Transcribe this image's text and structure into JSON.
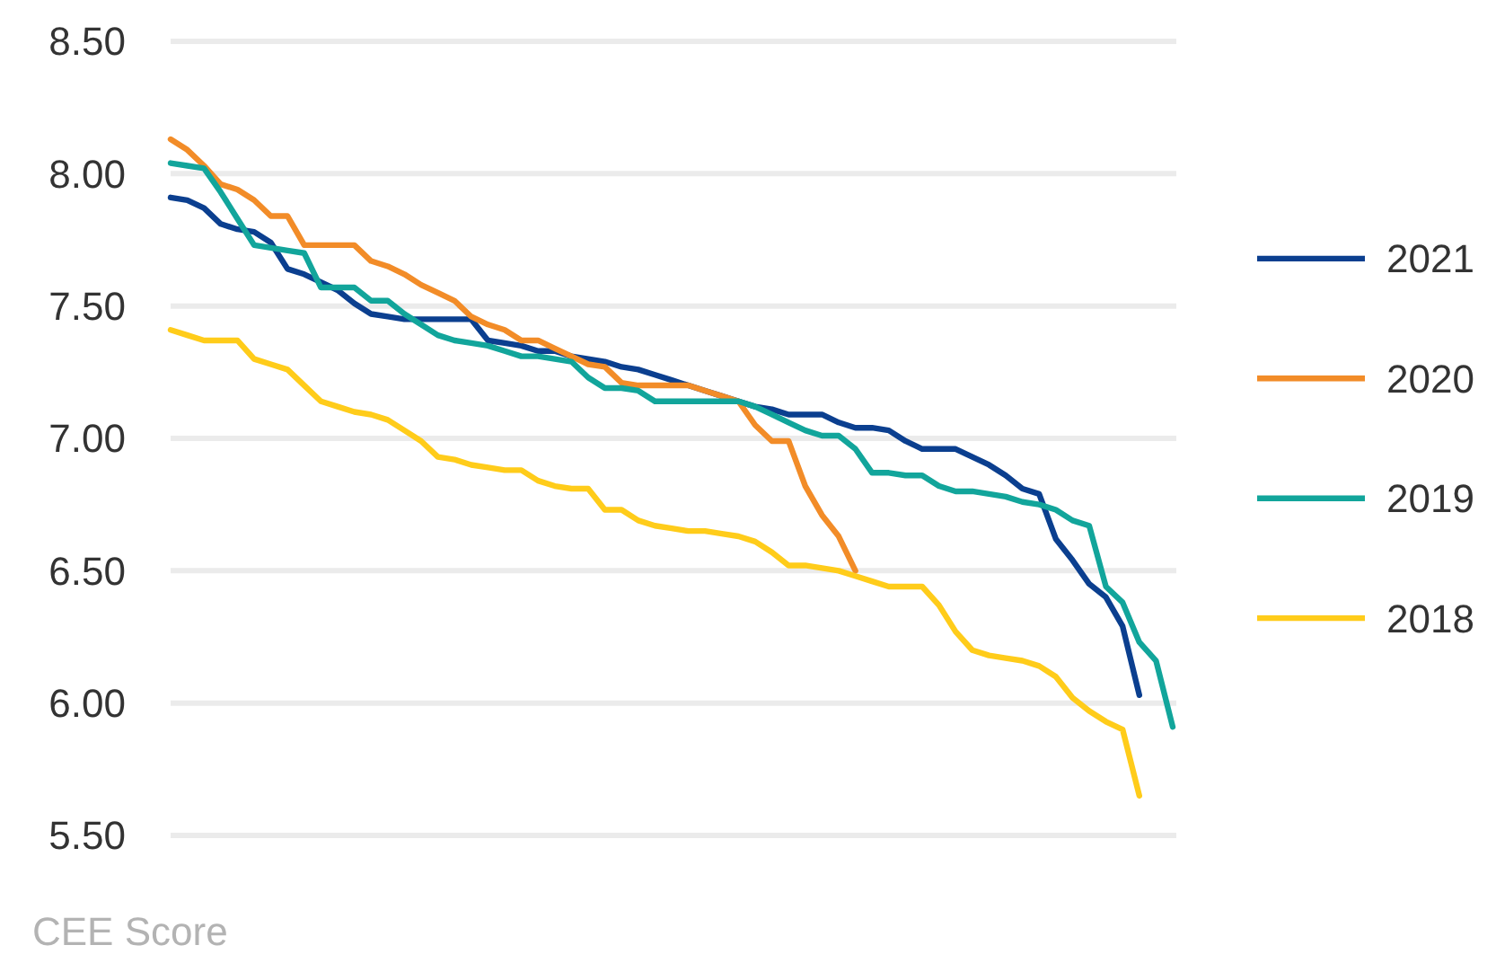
{
  "chart_data": {
    "type": "line",
    "categories": [
      null,
      null,
      null,
      null,
      null,
      null,
      null,
      null,
      null,
      null,
      null,
      null,
      null,
      null,
      null,
      null,
      null,
      null,
      null,
      null,
      null,
      null,
      null,
      null,
      null,
      null,
      null,
      null,
      null,
      null,
      null,
      null,
      null,
      null,
      null,
      null,
      null,
      null,
      null,
      null,
      null,
      null,
      null,
      null,
      null,
      null,
      null,
      null,
      null,
      null,
      null,
      null,
      null,
      null,
      null,
      null,
      null,
      null,
      null,
      null,
      null
    ],
    "series": [
      {
        "name": "2021",
        "color": "#0b3f8f",
        "values": [
          7.91,
          7.9,
          7.87,
          7.81,
          7.79,
          7.78,
          7.74,
          7.64,
          7.62,
          7.59,
          7.56,
          7.51,
          7.47,
          7.46,
          7.45,
          7.45,
          7.45,
          7.45,
          7.45,
          7.37,
          7.36,
          7.35,
          7.33,
          7.33,
          7.31,
          7.3,
          7.29,
          7.27,
          7.26,
          7.24,
          7.22,
          7.2,
          7.18,
          7.16,
          7.14,
          7.12,
          7.11,
          7.09,
          7.09,
          7.09,
          7.06,
          7.04,
          7.04,
          7.03,
          6.99,
          6.96,
          6.96,
          6.96,
          6.93,
          6.9,
          6.86,
          6.81,
          6.79,
          6.62,
          6.54,
          6.45,
          6.4,
          6.29,
          6.03,
          null,
          null
        ]
      },
      {
        "name": "2020",
        "color": "#f28c28",
        "values": [
          8.13,
          8.09,
          8.03,
          7.96,
          7.94,
          7.9,
          7.84,
          7.84,
          7.73,
          7.73,
          7.73,
          7.73,
          7.67,
          7.65,
          7.62,
          7.58,
          7.55,
          7.52,
          7.46,
          7.43,
          7.41,
          7.37,
          7.37,
          7.34,
          7.31,
          7.28,
          7.27,
          7.21,
          7.2,
          7.2,
          7.2,
          7.2,
          7.18,
          7.16,
          7.14,
          7.05,
          6.99,
          6.99,
          6.82,
          6.71,
          6.63,
          6.5,
          null,
          null,
          null,
          null,
          null,
          null,
          null,
          null,
          null,
          null,
          null,
          null,
          null,
          null,
          null,
          null,
          null,
          null,
          null
        ]
      },
      {
        "name": "2019",
        "color": "#12a59b",
        "values": [
          8.04,
          8.03,
          8.02,
          7.93,
          7.83,
          7.73,
          7.72,
          7.71,
          7.7,
          7.57,
          7.57,
          7.57,
          7.52,
          7.52,
          7.47,
          7.43,
          7.39,
          7.37,
          7.36,
          7.35,
          7.33,
          7.31,
          7.31,
          7.3,
          7.29,
          7.23,
          7.19,
          7.19,
          7.18,
          7.14,
          7.14,
          7.14,
          7.14,
          7.14,
          7.14,
          7.12,
          7.09,
          7.06,
          7.03,
          7.01,
          7.01,
          6.96,
          6.87,
          6.87,
          6.86,
          6.86,
          6.82,
          6.8,
          6.8,
          6.79,
          6.78,
          6.76,
          6.75,
          6.73,
          6.69,
          6.67,
          6.44,
          6.38,
          6.23,
          6.16,
          5.91
        ]
      },
      {
        "name": "2018",
        "color": "#ffcc1a",
        "values": [
          7.41,
          7.39,
          7.37,
          7.37,
          7.37,
          7.3,
          7.28,
          7.26,
          7.2,
          7.14,
          7.12,
          7.1,
          7.09,
          7.07,
          7.03,
          6.99,
          6.93,
          6.92,
          6.9,
          6.89,
          6.88,
          6.88,
          6.84,
          6.82,
          6.81,
          6.81,
          6.73,
          6.73,
          6.69,
          6.67,
          6.66,
          6.65,
          6.65,
          6.64,
          6.63,
          6.61,
          6.57,
          6.52,
          6.52,
          6.51,
          6.5,
          6.48,
          6.46,
          6.44,
          6.44,
          6.44,
          6.37,
          6.27,
          6.2,
          6.18,
          6.17,
          6.16,
          6.14,
          6.1,
          6.02,
          5.97,
          5.93,
          5.9,
          5.65,
          null,
          null
        ]
      }
    ],
    "ylim": [
      5.5,
      8.5
    ],
    "yticks": [
      {
        "value": 5.5,
        "label": "5.50"
      },
      {
        "value": 6,
        "label": "6.00"
      },
      {
        "value": 6.5,
        "label": "6.50"
      },
      {
        "value": 7,
        "label": "7.00"
      },
      {
        "value": 7.5,
        "label": "7.50"
      },
      {
        "value": 8,
        "label": "8.00"
      },
      {
        "value": 8.5,
        "label": "8.50"
      }
    ],
    "grid": "y",
    "legend": "right",
    "tick_labels": "y",
    "marker": "none",
    "line_style": "solid",
    "annotations": [
      "CEE Score"
    ]
  }
}
